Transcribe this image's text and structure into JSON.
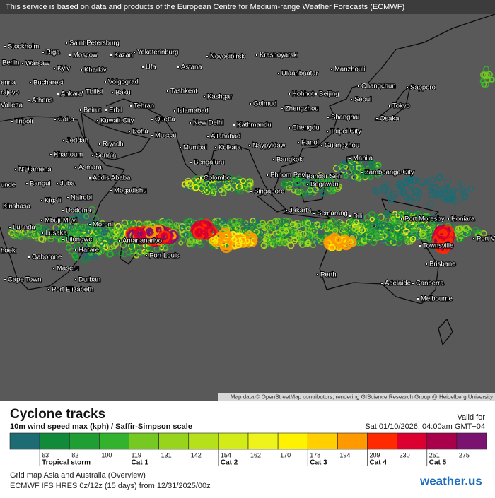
{
  "header": {
    "notice": "This service is based on data and products of the European Centre for Medium-range Weather Forecasts (ECMWF)"
  },
  "map": {
    "cities": [
      "Stockholm",
      "Saint Petersburg",
      "Riga",
      "Moscow",
      "Kazan",
      "Yekaterinburg",
      "Novosibirsk",
      "Krasnoyarsk",
      "Berlin",
      "Warsaw",
      "Kyiv",
      "Kharkiv",
      "Ufa",
      "Astana",
      "Ulaanbaatar",
      "Manzhouli",
      "Bucharest",
      "Volgograd",
      "Changchun",
      "Sapporo",
      "enna",
      "rajevo",
      "Ankara",
      "Tbilisi",
      "Baku",
      "Tashkent",
      "Kashgar",
      "Hohhot",
      "Beijing",
      "Valletta",
      "Athens",
      "Seoul",
      "Golmud",
      "Tehran",
      "Beirut",
      "Erbil",
      "Islamabad",
      "Zhengzhou",
      "Tokyo",
      "Tripoli",
      "Cairo",
      "Kuwait City",
      "Quetta",
      "New Delhi",
      "Kathmandu",
      "Shanghai",
      "Osaka",
      "Chengdu",
      "Doha",
      "Muscat",
      "Allahabad",
      "Taipei City",
      "Jeddah",
      "Riyadh",
      "Mumbai",
      "Kolkata",
      "Naypyidaw",
      "Hanoi",
      "Guangzhou",
      "Khartoum",
      "Sana'a",
      "Bangkok",
      "Manila",
      "Asmara",
      "Bengaluru",
      "N'Djamena",
      "Addis Ababa",
      "Phnom Penh",
      "Zamboanga City",
      "Colombo",
      "Bandar Seri",
      "Begawan",
      "Bangui",
      "Juba",
      "unde",
      "Mogadishu",
      "Singapore",
      "Kigali",
      "Nairobi",
      "Kinshasa",
      "Dodoma",
      "Jakarta",
      "Semarang",
      "Dili",
      "Port Moresby",
      "Honiara",
      "Luanda",
      "Mbuji-Mayi",
      "Moroni",
      "Lusaka",
      "Lilongwe",
      "Antananarivo",
      "hoek",
      "Harare",
      "Port Louis",
      "Townsville",
      "Port V",
      "Gaborone",
      "Brisbane",
      "Maseru",
      "Perth",
      "Adelaide",
      "Canberra",
      "Cape Town",
      "Durban",
      "Port Elizabeth",
      "Melbourne"
    ],
    "attribution": "Map data © OpenStreetMap contributors, rendering GIScience Research Group @ Heidelberg University"
  },
  "legend": {
    "title": "Cyclone tracks",
    "subtitle": "10m wind speed max (kph) / Saffir-Simpson scale",
    "valid_label": "Valid for",
    "valid_time": "Sat 01/10/2026, 04:00am GMT+04",
    "scale": [
      {
        "value": null,
        "color": "#1d6b73"
      },
      {
        "value": 63,
        "color": "#118a3a"
      },
      {
        "value": 82,
        "color": "#1f9e33"
      },
      {
        "value": 100,
        "color": "#33b32d"
      },
      {
        "value": 119,
        "color": "#76c920"
      },
      {
        "value": 131,
        "color": "#98d41c"
      },
      {
        "value": 142,
        "color": "#b5e01a"
      },
      {
        "value": 154,
        "color": "#d3eb16"
      },
      {
        "value": 162,
        "color": "#eef41a"
      },
      {
        "value": 170,
        "color": "#fff200"
      },
      {
        "value": 178,
        "color": "#ffcf00"
      },
      {
        "value": 194,
        "color": "#ff9900"
      },
      {
        "value": 209,
        "color": "#ff2a00"
      },
      {
        "value": 230,
        "color": "#dc0030"
      },
      {
        "value": 251,
        "color": "#a8004a"
      },
      {
        "value": 275,
        "color": "#7a1270"
      }
    ],
    "classes": [
      "Tropical storm",
      "Cat 1",
      "Cat 2",
      "Cat 3",
      "Cat 4",
      "Cat 5"
    ]
  },
  "footer": {
    "line1": "Grid map Asia and Australia (Overview)",
    "line2": "ECMWF IFS HRES 0z/12z (15 days) from 12/31/2025/00z",
    "logo": "weather.us"
  }
}
